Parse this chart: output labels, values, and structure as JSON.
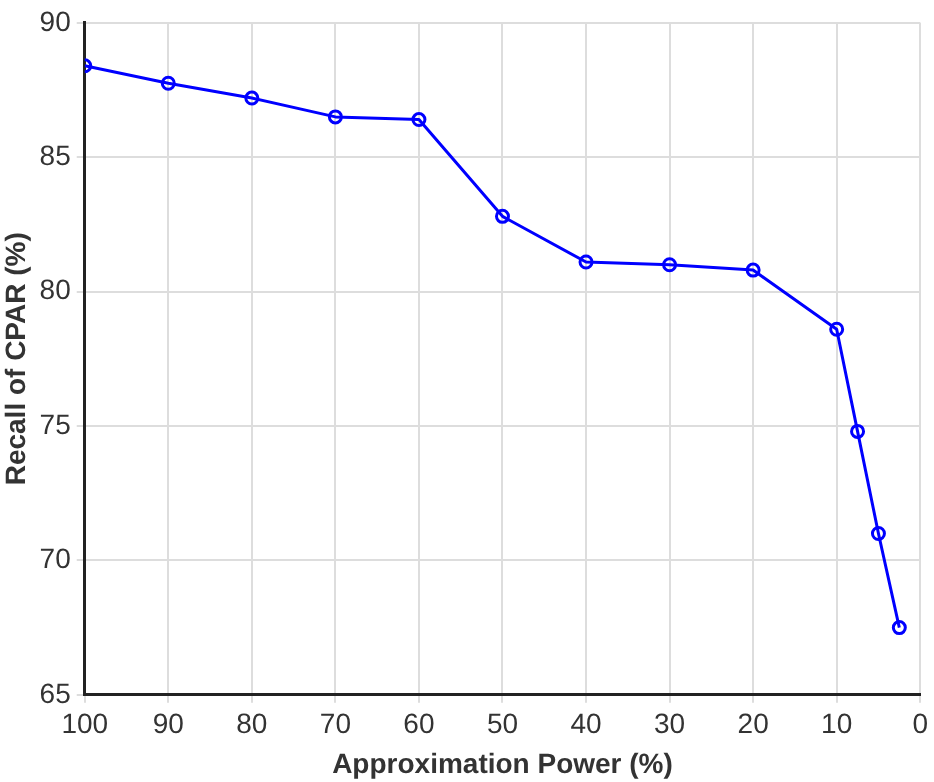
{
  "chart_data": {
    "type": "line",
    "xlabel": "Approximation Power (%)",
    "ylabel": "Recall of CPAR (%)",
    "x": [
      100,
      90,
      80,
      70,
      60,
      50,
      40,
      30,
      20,
      10,
      7.5,
      5,
      2.5
    ],
    "series": [
      {
        "color": "#0000ff",
        "values": [
          88.4,
          87.75,
          87.2,
          86.5,
          86.4,
          82.8,
          81.1,
          81.0,
          80.8,
          78.6,
          74.8,
          71.0,
          67.5
        ]
      }
    ],
    "xlim": [
      100,
      0
    ],
    "xticks": [
      100,
      90,
      80,
      70,
      60,
      50,
      40,
      30,
      20,
      10,
      0
    ],
    "ylim": [
      65,
      90
    ],
    "yticks": [
      65,
      70,
      75,
      80,
      85,
      90
    ],
    "grid": true,
    "legend": false,
    "marker": "circle",
    "line_style": "solid"
  }
}
